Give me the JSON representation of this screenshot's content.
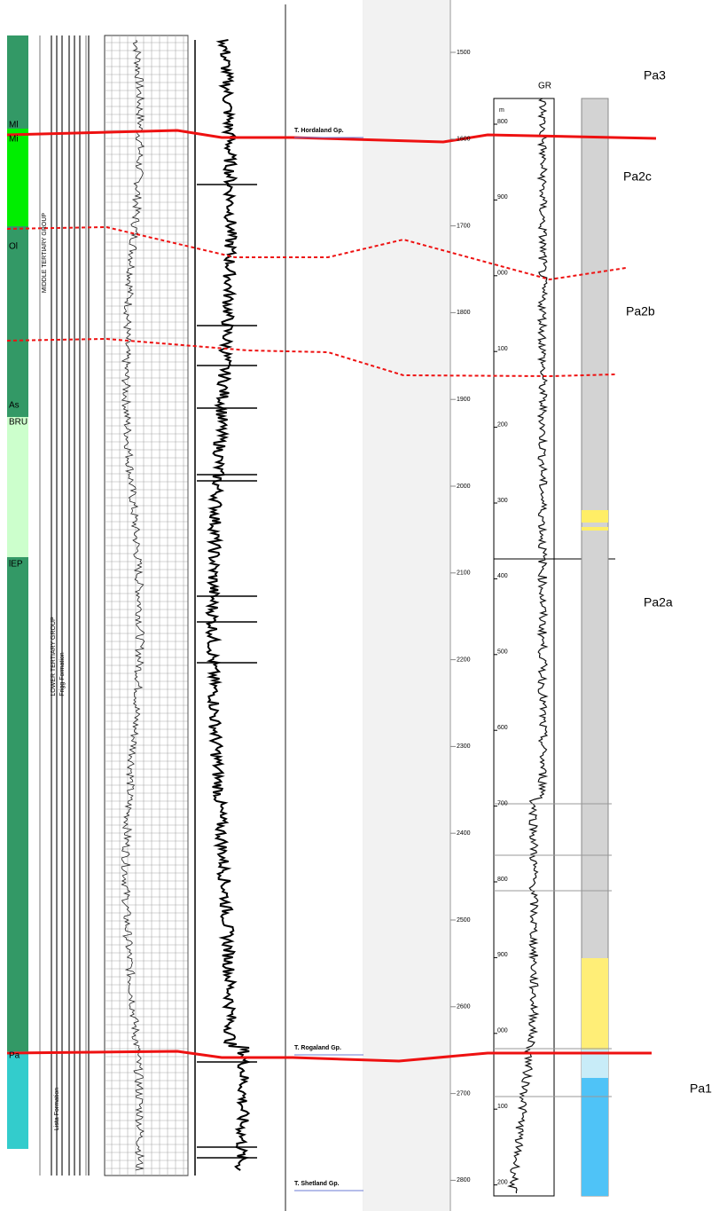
{
  "strat_column": {
    "labels": [
      "Ml",
      "Mi",
      "Ol",
      "As",
      "BRU",
      "lEP",
      "Pa"
    ]
  },
  "scan_log": {
    "group_labels": [
      "MIDDLE TERTIARY GROUP",
      "LOWER TERTIARY GROUP",
      "Frigg Formation",
      "Lista Formation"
    ]
  },
  "middle_log": {
    "formation_tops": [
      "T. Hordaland Gp.",
      "T. Rogaland Gp.",
      "T. Shetland Gp."
    ],
    "depth_labels": [
      "1500",
      "1600",
      "1700",
      "1800",
      "1900",
      "2000",
      "2100",
      "2200",
      "2300",
      "2400",
      "2500",
      "2600",
      "2700",
      "2800"
    ]
  },
  "right_log": {
    "curve_label": "GR",
    "unit": "m",
    "depth_labels": [
      "800",
      "900",
      "000",
      "100",
      "200",
      "300",
      "400",
      "500",
      "600",
      "700",
      "800",
      "900",
      "000",
      "100",
      "200"
    ]
  },
  "zones": [
    "Pa3",
    "Pa2c",
    "Pa2b",
    "Pa2a",
    "Pa1"
  ]
}
